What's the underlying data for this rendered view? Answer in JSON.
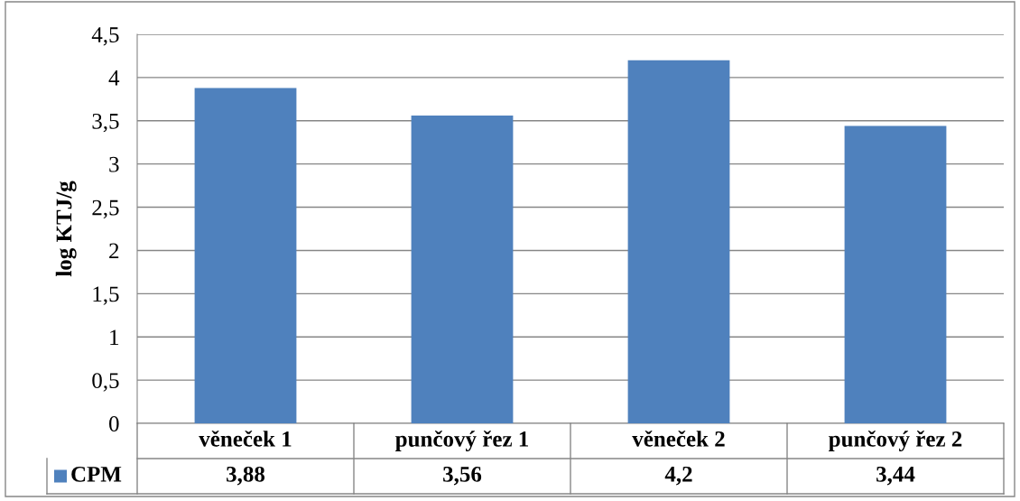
{
  "chart_data": {
    "type": "bar",
    "ylabel": "log KTJ/g",
    "categories": [
      "věneček 1",
      "punčový řez 1",
      "věneček 2",
      "punčový řez 2"
    ],
    "series": [
      {
        "name": "CPM",
        "color": "#4f81bd",
        "values": [
          3.88,
          3.56,
          4.2,
          3.44
        ],
        "value_labels": [
          "3,88",
          "3,56",
          "4,2",
          "3,44"
        ]
      }
    ],
    "ylim": [
      0,
      4.5
    ],
    "yticks": [
      0,
      {
        "value": 0.5,
        "label": "0,5"
      },
      1,
      {
        "value": 1.5,
        "label": "1,5"
      },
      2,
      {
        "value": 2.5,
        "label": "2,5"
      },
      3,
      {
        "value": 3.5,
        "label": "3,5"
      },
      4,
      {
        "value": 4.5,
        "label": "4,5"
      }
    ],
    "grid": "y",
    "legend": "bottom"
  }
}
